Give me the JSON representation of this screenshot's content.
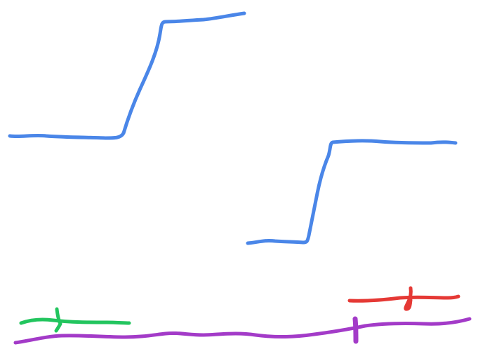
{
  "canvas": {
    "background": "#ffffff"
  },
  "colors": {
    "blue": "#4a86e8",
    "green": "#22c55e",
    "red": "#e53935",
    "purple": "#a33bc8"
  },
  "strokes": [
    {
      "name": "left-step-curve",
      "color": "blue"
    },
    {
      "name": "right-step-curve",
      "color": "blue"
    },
    {
      "name": "green-tick-line",
      "color": "green"
    },
    {
      "name": "red-tick-line",
      "color": "red"
    },
    {
      "name": "purple-baseline",
      "color": "purple"
    }
  ]
}
